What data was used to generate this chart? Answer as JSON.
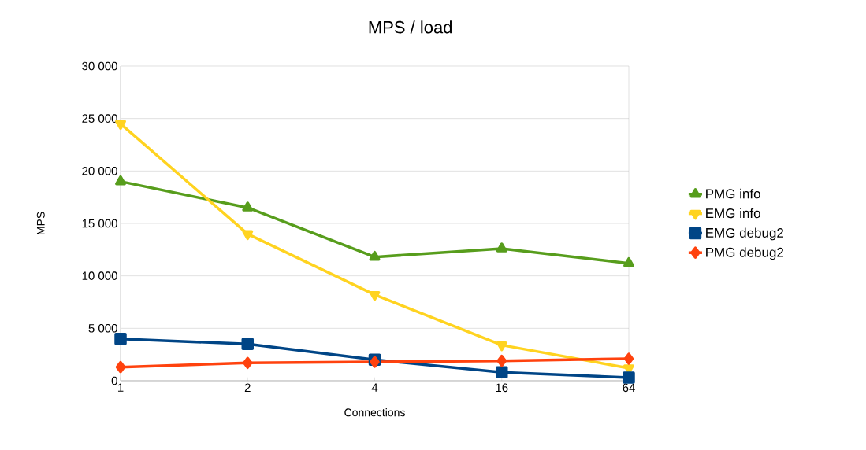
{
  "chart_data": {
    "type": "line",
    "title": "MPS / load",
    "xlabel": "Connections",
    "ylabel": "MPS",
    "categories": [
      "1",
      "2",
      "4",
      "16",
      "64"
    ],
    "series": [
      {
        "name": "PMG info",
        "color": "#579d1c",
        "marker": "triangle",
        "values": [
          19000,
          16500,
          11800,
          12600,
          11200
        ]
      },
      {
        "name": "EMG info",
        "color": "#ffd320",
        "marker": "triangle down",
        "values": [
          24500,
          14000,
          8200,
          3400,
          1200
        ]
      },
      {
        "name": "EMG debug2",
        "color": "#004586",
        "marker": "square",
        "values": [
          4000,
          3500,
          2000,
          800,
          300
        ]
      },
      {
        "name": "PMG debug2",
        "color": "#ff420e",
        "marker": "diamond",
        "values": [
          1300,
          1700,
          1800,
          1900,
          2100
        ]
      }
    ],
    "ylim": [
      0,
      30000
    ],
    "yticks": [
      {
        "value": 0,
        "label": "0"
      },
      {
        "value": 5000,
        "label": "5 000"
      },
      {
        "value": 10000,
        "label": "10 000"
      },
      {
        "value": 15000,
        "label": "15 000"
      },
      {
        "value": 20000,
        "label": "20 000"
      },
      {
        "value": 25000,
        "label": "25 000"
      },
      {
        "value": 30000,
        "label": "30 000"
      }
    ],
    "grid": "y",
    "legend": "right",
    "line_style": "solid"
  }
}
